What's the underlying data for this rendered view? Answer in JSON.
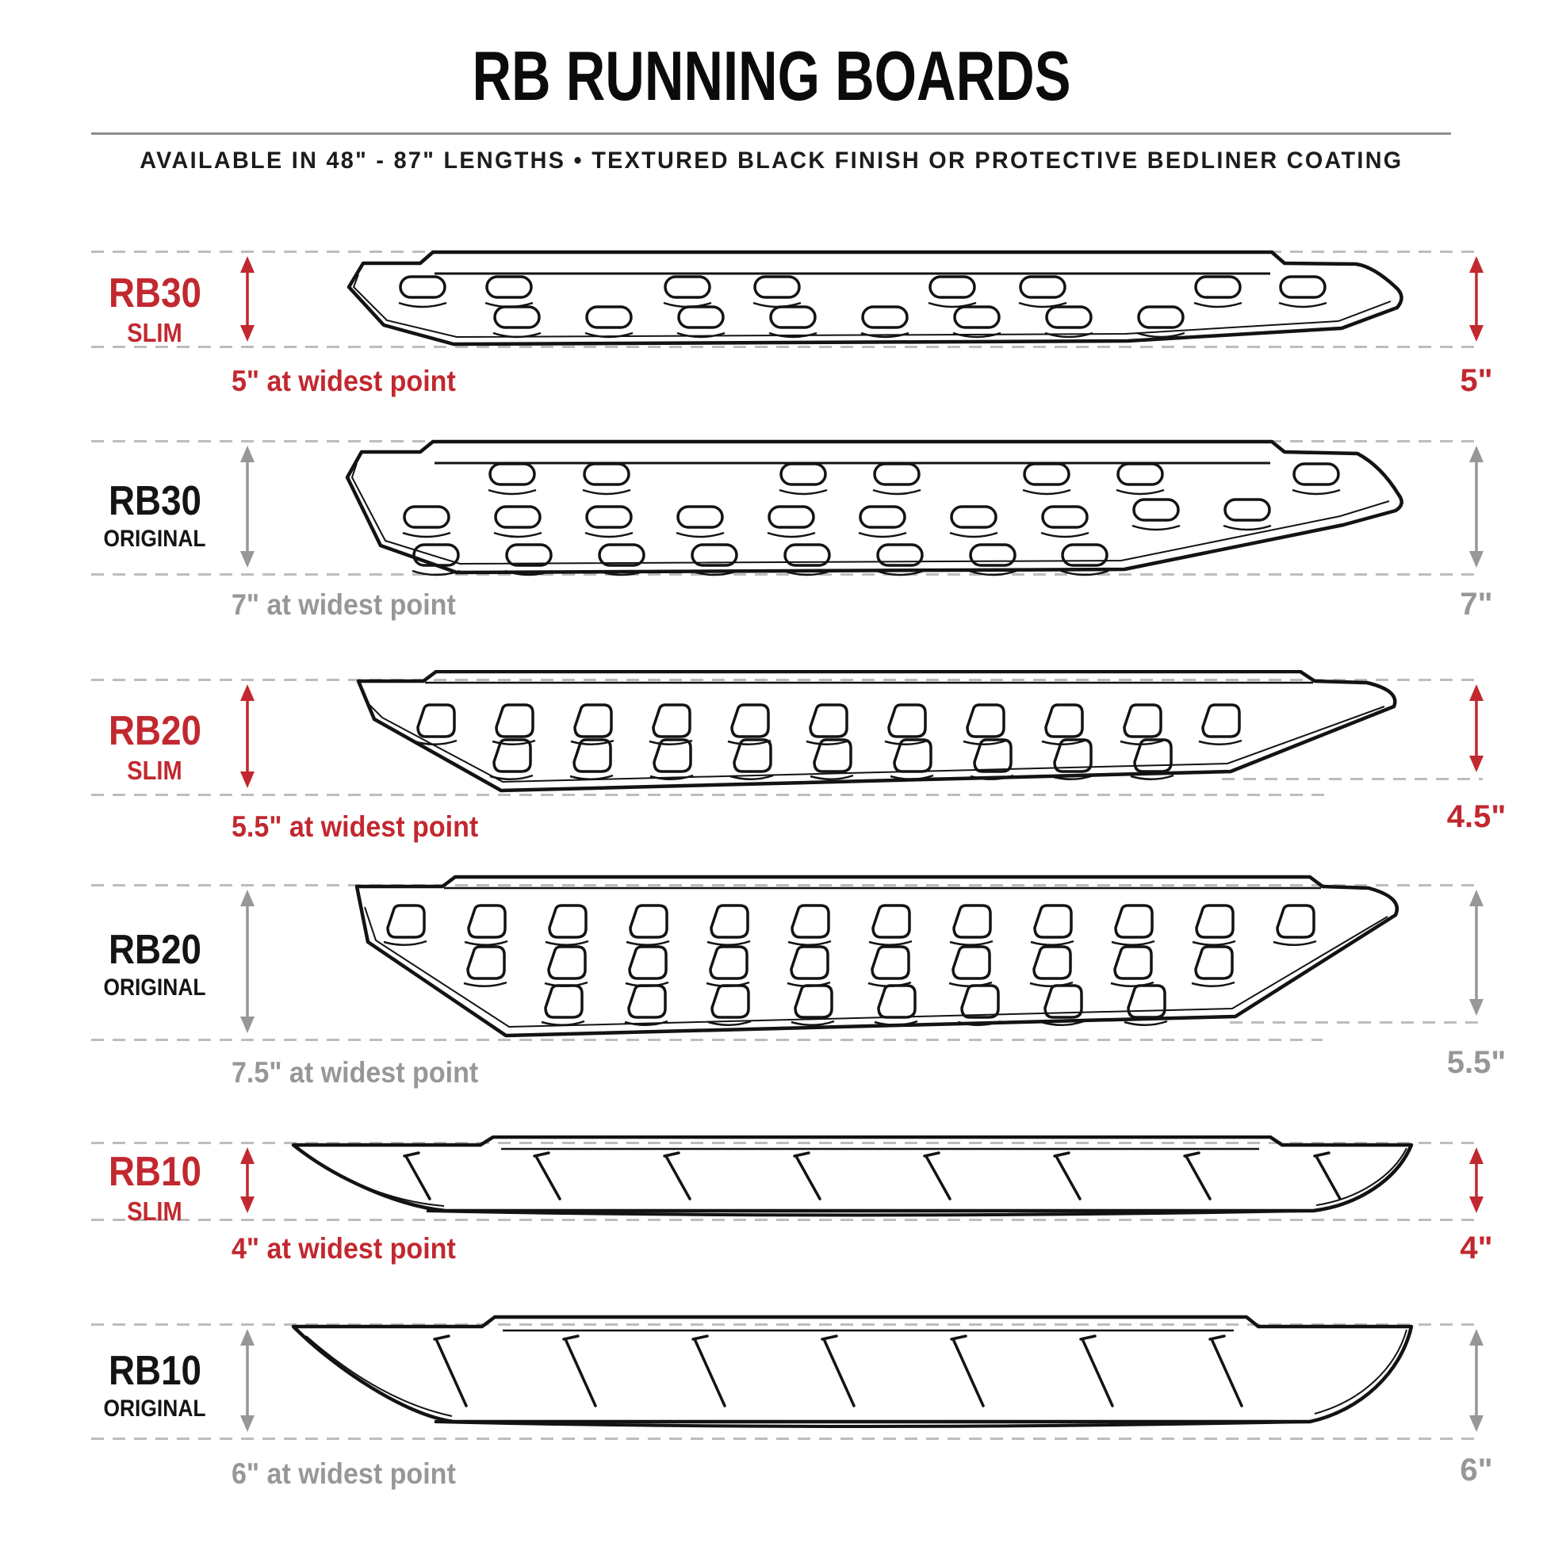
{
  "header": {
    "title": "RB RUNNING BOARDS",
    "subtitle": "AVAILABLE IN 48\" - 87\" LENGTHS  •  TEXTURED BLACK FINISH OR PROTECTIVE BEDLINER COATING"
  },
  "colors": {
    "red": "#C2282F",
    "gray": "#97979A",
    "black": "#141414",
    "dash": "#BDBDBD"
  },
  "boards": [
    {
      "model": "RB30",
      "variant": "SLIM",
      "accent": "red",
      "width_label": "5\" at widest point",
      "height_label": "5\""
    },
    {
      "model": "RB30",
      "variant": "ORIGINAL",
      "accent": "gray",
      "width_label": "7\" at widest point",
      "height_label": "7\""
    },
    {
      "model": "RB20",
      "variant": "SLIM",
      "accent": "red",
      "width_label": "5.5\" at widest point",
      "height_label": "4.5\""
    },
    {
      "model": "RB20",
      "variant": "ORIGINAL",
      "accent": "gray",
      "width_label": "7.5\" at widest point",
      "height_label": "5.5\""
    },
    {
      "model": "RB10",
      "variant": "SLIM",
      "accent": "red",
      "width_label": "4\" at widest point",
      "height_label": "4\""
    },
    {
      "model": "RB10",
      "variant": "ORIGINAL",
      "accent": "gray",
      "width_label": "6\" at widest point",
      "height_label": "6\""
    }
  ]
}
